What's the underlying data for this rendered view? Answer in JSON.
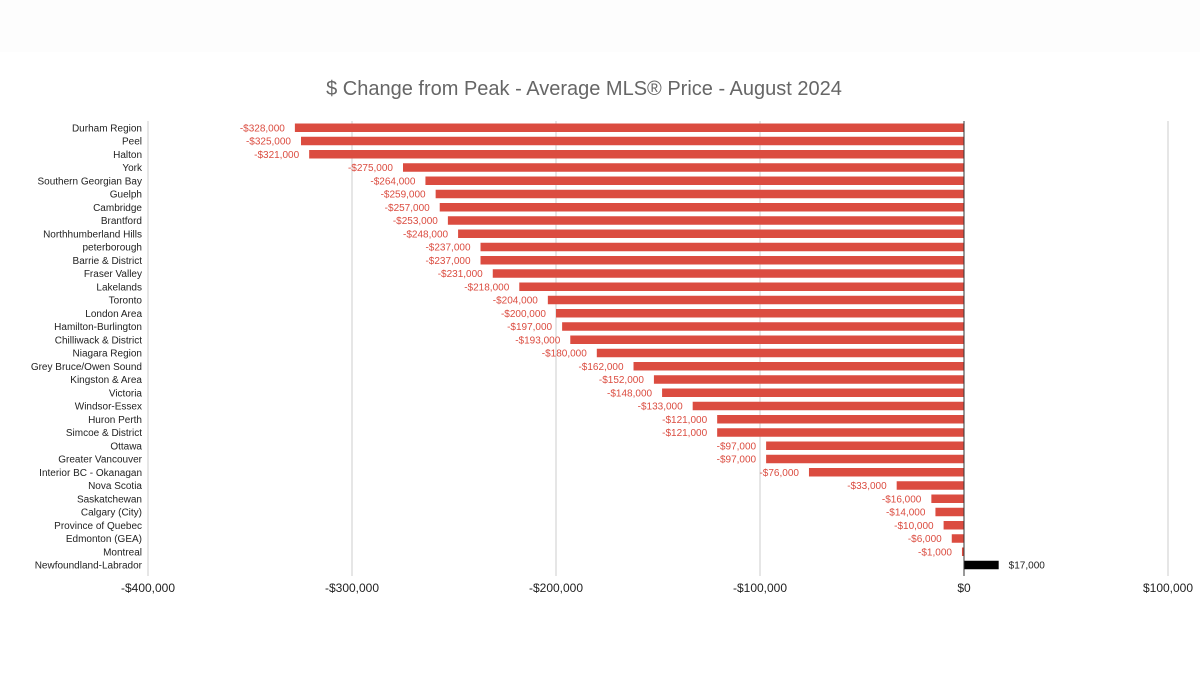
{
  "chart_data": {
    "type": "bar",
    "orientation": "horizontal",
    "title": "$ Change from Peak - Average MLS® Price - August 2024",
    "xlabel": "",
    "ylabel": "",
    "xlim": [
      -400000,
      100000
    ],
    "x_ticks": [
      {
        "value": -400000,
        "label": "-$400,000"
      },
      {
        "value": -300000,
        "label": "-$300,000"
      },
      {
        "value": -200000,
        "label": "-$200,000"
      },
      {
        "value": -100000,
        "label": "-$100,000"
      },
      {
        "value": 0,
        "label": "$0"
      },
      {
        "value": 100000,
        "label": "$100,000"
      }
    ],
    "grid": true,
    "legend": "none",
    "colors": {
      "negative": "#db4c40",
      "positive": "#000000",
      "grid": "#cccccc",
      "zero_line": "#333333"
    },
    "categories": [
      "Durham Region",
      "Peel",
      "Halton",
      "York",
      "Southern Georgian Bay",
      "Guelph",
      "Cambridge",
      "Brantford",
      "Northhumberland Hills",
      "peterborough",
      "Barrie & District",
      "Fraser Valley",
      "Lakelands",
      "Toronto",
      "London Area",
      "Hamilton-Burlington",
      "Chilliwack & District",
      "Niagara Region",
      "Grey Bruce/Owen Sound",
      "Kingston & Area",
      "Victoria",
      "Windsor-Essex",
      "Huron Perth",
      "Simcoe & District",
      "Ottawa",
      "Greater Vancouver",
      "Interior BC - Okanagan",
      "Nova Scotia",
      "Saskatchewan",
      "Calgary (City)",
      "Province of Quebec",
      "Edmonton (GEA)",
      "Montreal",
      "Newfoundland-Labrador"
    ],
    "values": [
      -328000,
      -325000,
      -321000,
      -275000,
      -264000,
      -259000,
      -257000,
      -253000,
      -248000,
      -237000,
      -237000,
      -231000,
      -218000,
      -204000,
      -200000,
      -197000,
      -193000,
      -180000,
      -162000,
      -152000,
      -148000,
      -133000,
      -121000,
      -121000,
      -97000,
      -97000,
      -76000,
      -33000,
      -16000,
      -14000,
      -10000,
      -6000,
      -1000,
      17000
    ],
    "data_labels": [
      "-$328,000",
      "-$325,000",
      "-$321,000",
      "-$275,000",
      "-$264,000",
      "-$259,000",
      "-$257,000",
      "-$253,000",
      "-$248,000",
      "-$237,000",
      "-$237,000",
      "-$231,000",
      "-$218,000",
      "-$204,000",
      "-$200,000",
      "-$197,000",
      "-$193,000",
      "-$180,000",
      "-$162,000",
      "-$152,000",
      "-$148,000",
      "-$133,000",
      "-$121,000",
      "-$121,000",
      "-$97,000",
      "-$97,000",
      "-$76,000",
      "-$33,000",
      "-$16,000",
      "-$14,000",
      "-$10,000",
      "-$6,000",
      "-$1,000",
      "$17,000"
    ]
  }
}
